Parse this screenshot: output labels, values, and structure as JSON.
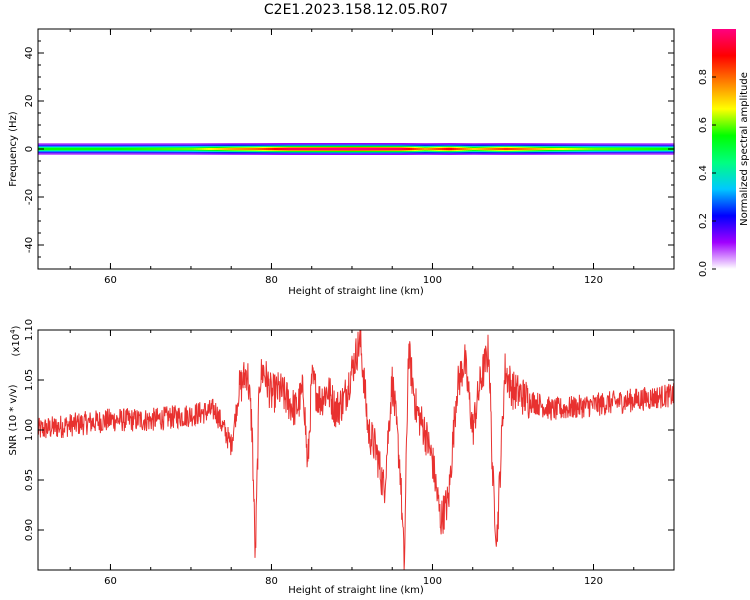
{
  "title": "C2E1.2023.158.12.05.R07",
  "chart_data": [
    {
      "type": "heatmap",
      "xlabel": "Height of straight line (km)",
      "ylabel": "Frequency (Hz)",
      "xlim": [
        51,
        130
      ],
      "ylim": [
        -50,
        50
      ],
      "xticks": [
        "60",
        "80",
        "100",
        "120"
      ],
      "yticks": [
        "40",
        "20",
        "0",
        "-20",
        "-40"
      ],
      "colorbar": {
        "label": "Normalized spectral amplitude",
        "range": [
          0.0,
          1.0
        ],
        "ticks": [
          "0.0",
          "0.2",
          "0.4",
          "0.6",
          "0.8"
        ],
        "colormap": [
          "#ffffff",
          "#a000ff",
          "#0000ff",
          "#00c8ff",
          "#00ff80",
          "#00ff00",
          "#ffff00",
          "#ff8000",
          "#ff0000",
          "#ff0080"
        ]
      },
      "band": [
        {
          "x": 51,
          "amp": 0.55
        },
        {
          "x": 60,
          "amp": 0.55
        },
        {
          "x": 70,
          "amp": 0.6
        },
        {
          "x": 75,
          "amp": 0.75
        },
        {
          "x": 78,
          "amp": 0.8
        },
        {
          "x": 82,
          "amp": 0.95
        },
        {
          "x": 90,
          "amp": 1.0
        },
        {
          "x": 96,
          "amp": 0.95
        },
        {
          "x": 99,
          "amp": 0.75
        },
        {
          "x": 102,
          "amp": 0.9
        },
        {
          "x": 105,
          "amp": 0.7
        },
        {
          "x": 109,
          "amp": 0.85
        },
        {
          "x": 114,
          "amp": 0.7
        },
        {
          "x": 120,
          "amp": 0.6
        },
        {
          "x": 130,
          "amp": 0.55
        }
      ]
    },
    {
      "type": "line",
      "xlabel": "Height of straight line (km)",
      "ylabel": "SNR (10 * v/v)",
      "scale_label": "(x10",
      "scale_exp": "4",
      "scale_close": ")",
      "xlim": [
        51,
        130
      ],
      "ylim": [
        0.86,
        1.1
      ],
      "xticks": [
        "60",
        "80",
        "100",
        "120"
      ],
      "yticks": [
        "0.90",
        "0.95",
        "1.00",
        "1.05",
        "1.10"
      ],
      "color": "#e8312f",
      "series": [
        {
          "x": [
            51,
            55,
            60,
            65,
            70,
            73,
            75,
            76,
            77,
            77.6,
            78,
            78.5,
            79,
            80,
            81,
            82,
            83,
            84,
            84.5,
            85,
            86,
            87,
            88,
            89,
            90,
            91,
            91.5,
            92,
            93,
            94,
            95,
            96,
            96.5,
            97,
            98,
            99,
            100,
            101,
            102,
            103,
            104,
            105,
            106,
            107,
            107.5,
            108,
            109,
            110,
            112,
            115,
            120,
            125,
            130
          ],
          "y": [
            1.0,
            1.005,
            1.01,
            1.01,
            1.015,
            1.02,
            0.985,
            1.04,
            1.06,
            1.0,
            0.87,
            1.05,
            1.06,
            1.035,
            1.04,
            1.03,
            1.02,
            1.04,
            0.96,
            1.05,
            1.03,
            1.04,
            1.02,
            1.03,
            1.06,
            1.09,
            1.05,
            1.0,
            0.98,
            0.94,
            1.05,
            0.96,
            0.86,
            1.08,
            1.02,
            1.0,
            0.97,
            0.91,
            0.93,
            1.04,
            1.07,
            1.0,
            1.05,
            1.08,
            0.95,
            0.89,
            1.06,
            1.04,
            1.03,
            1.02,
            1.025,
            1.03,
            1.035
          ]
        }
      ]
    }
  ]
}
